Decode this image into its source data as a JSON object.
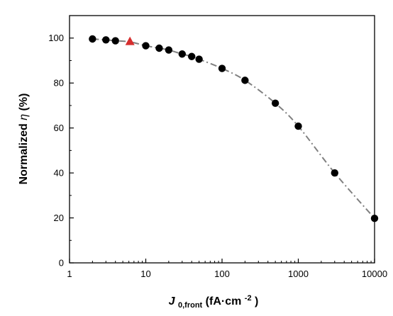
{
  "chart_data": {
    "type": "scatter",
    "xscale": "log",
    "xlim": [
      1,
      10000
    ],
    "ylim": [
      0,
      110
    ],
    "xticks": [
      1,
      10,
      100,
      1000,
      10000
    ],
    "xtick_labels": [
      "1",
      "10",
      "100",
      "1000",
      "10000"
    ],
    "yticks": [
      0,
      20,
      40,
      60,
      80,
      100
    ],
    "ytick_labels": [
      "0",
      "20",
      "40",
      "60",
      "80",
      "100"
    ],
    "ylabel": "Normalized η (%)",
    "ylabel_parts": {
      "prefix": "Normalized ",
      "symbol": "η",
      "suffix": " (%)"
    },
    "xlabel": "J0,front (fA·cm-2)",
    "xlabel_parts": {
      "main": "J",
      "subscript": "0,front",
      "unit_open": " (fA·cm",
      "superscript": "-2",
      "unit_close": ")"
    },
    "grid": false,
    "legend": "none",
    "series": [
      {
        "marker": "circle",
        "color": "#000000",
        "x": [
          2,
          3,
          4,
          10,
          15,
          20,
          30,
          40,
          50,
          100,
          200,
          500,
          1000,
          3000,
          10000
        ],
        "y": [
          99.6,
          99.2,
          98.8,
          96.6,
          95.5,
          94.7,
          92.9,
          91.8,
          90.6,
          86.5,
          81.2,
          71.0,
          60.8,
          40.0,
          19.8
        ]
      },
      {
        "marker": "triangle",
        "color": "#d62e2e",
        "x": [
          6.2
        ],
        "y": [
          98.3
        ]
      }
    ],
    "fit_line": {
      "style": "dash-dot",
      "color": "#808080",
      "x": [
        2,
        3,
        4,
        6.2,
        10,
        15,
        20,
        30,
        40,
        50,
        100,
        200,
        500,
        1000,
        3000,
        10000
      ],
      "y": [
        99.6,
        99.2,
        98.8,
        98.3,
        96.6,
        95.5,
        94.7,
        92.9,
        91.8,
        90.6,
        86.5,
        81.2,
        71.0,
        60.8,
        40.0,
        19.8
      ]
    }
  }
}
